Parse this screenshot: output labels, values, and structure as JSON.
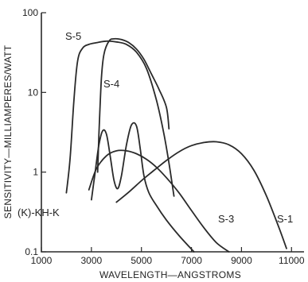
{
  "chart_data": {
    "type": "line",
    "title": "",
    "xlabel": "WAVELENGTH—ANGSTROMS",
    "ylabel": "SENSITIVITY—MILLIAMPERES/WATT",
    "xlim": [
      1000,
      11500
    ],
    "ylim": [
      0.1,
      100
    ],
    "yscale": "log",
    "x_ticks": [
      1000,
      3000,
      5000,
      7000,
      9000,
      11000
    ],
    "x_tick_labels": [
      "1000",
      "3000",
      "5000",
      "7000",
      "9000",
      "11000"
    ],
    "y_ticks": [
      0.1,
      1,
      10,
      100
    ],
    "y_tick_labels": [
      "0.1",
      "1",
      "10",
      "100"
    ],
    "grid": false,
    "series": [
      {
        "name": "S-5",
        "x": [
          2000,
          2150,
          2300,
          2450,
          2650,
          2900,
          3200,
          3600,
          4000,
          4400,
          4800,
          5200,
          5600,
          5900,
          6100,
          6300
        ],
        "y": [
          0.55,
          1.5,
          8,
          25,
          36,
          40,
          42,
          44,
          43,
          40,
          32,
          20,
          8,
          3,
          1.3,
          0.5
        ]
      },
      {
        "name": "S-4",
        "x": [
          3250,
          3300,
          3400,
          3500,
          3700,
          3900,
          4200,
          4500,
          4800,
          5100,
          5400,
          5700,
          6000,
          6100
        ],
        "y": [
          1,
          3,
          15,
          30,
          44,
          47,
          46,
          42,
          35,
          26,
          17,
          11,
          6.5,
          3.5
        ]
      },
      {
        "name": "S-3",
        "x": [
          2900,
          3200,
          3600,
          4000,
          4400,
          4800,
          5200,
          5600,
          6000,
          6500,
          7000,
          7500,
          8000,
          8500
        ],
        "y": [
          0.6,
          1.1,
          1.6,
          1.85,
          1.85,
          1.7,
          1.45,
          1.15,
          0.85,
          0.55,
          0.33,
          0.2,
          0.13,
          0.1
        ]
      },
      {
        "name": "S-1",
        "x": [
          4000,
          4300,
          4600,
          5000,
          5500,
          6000,
          6500,
          7000,
          7500,
          8000,
          8500,
          9000,
          9500,
          10000,
          10500,
          10800
        ],
        "y": [
          0.42,
          0.5,
          0.6,
          0.78,
          1.05,
          1.4,
          1.8,
          2.15,
          2.35,
          2.4,
          2.2,
          1.7,
          1.05,
          0.5,
          0.2,
          0.11
        ]
      },
      {
        "name": "(K)-KH-K",
        "x": [
          3000,
          3150,
          3300,
          3450,
          3600,
          3750,
          3900,
          4050,
          4200,
          4400,
          4600,
          4800,
          4950,
          5100,
          5300,
          5600,
          6000,
          6500,
          7100
        ],
        "y": [
          0.45,
          1.0,
          2.2,
          3.3,
          3.0,
          1.6,
          0.8,
          0.62,
          0.9,
          2.2,
          3.9,
          3.8,
          2.0,
          0.9,
          0.55,
          0.38,
          0.25,
          0.16,
          0.1
        ]
      }
    ]
  }
}
